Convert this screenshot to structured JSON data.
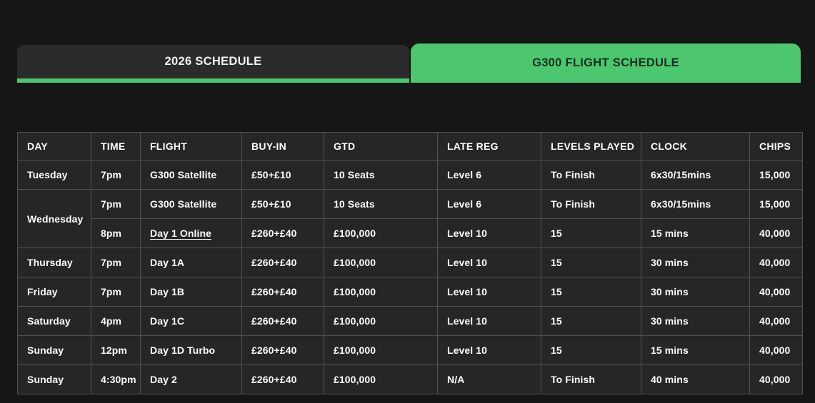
{
  "tabs": [
    {
      "label": "2026 SCHEDULE",
      "active": false
    },
    {
      "label": "G300 FLIGHT SCHEDULE",
      "active": true
    }
  ],
  "colors": {
    "accent_green": "#4cc76f",
    "page_background": "#161616",
    "cell_background": "#262626",
    "inactive_tab_background": "#2b2b2b",
    "active_tab_text": "#12301e",
    "table_text": "#ffffff",
    "table_border": "#525252"
  },
  "table": {
    "headers": [
      "DAY",
      "TIME",
      "FLIGHT",
      "BUY-IN",
      "GTD",
      "LATE REG",
      "LEVELS PLAYED",
      "CLOCK",
      "CHIPS"
    ],
    "rows": [
      {
        "day": "Tuesday",
        "day_rowspan": 1,
        "time": "7pm",
        "flight": "G300 Satellite",
        "flight_link": false,
        "buy_in": "£50+£10",
        "gtd": "10 Seats",
        "late_reg": "Level 6",
        "levels_played": "To Finish",
        "clock": "6x30/15mins",
        "chips": "15,000"
      },
      {
        "day": "Wednesday",
        "day_rowspan": 2,
        "time": "7pm",
        "flight": "G300 Satellite",
        "flight_link": false,
        "buy_in": "£50+£10",
        "gtd": "10 Seats",
        "late_reg": "Level 6",
        "levels_played": "To Finish",
        "clock": "6x30/15mins",
        "chips": "15,000"
      },
      {
        "day": "",
        "day_rowspan": 0,
        "time": "8pm",
        "flight": "Day 1 Online",
        "flight_link": true,
        "buy_in": "£260+£40",
        "gtd": "£100,000",
        "late_reg": "Level 10",
        "levels_played": "15",
        "clock": "15 mins",
        "chips": "40,000"
      },
      {
        "day": "Thursday",
        "day_rowspan": 1,
        "time": "7pm",
        "flight": "Day 1A",
        "flight_link": false,
        "buy_in": "£260+£40",
        "gtd": "£100,000",
        "late_reg": "Level 10",
        "levels_played": "15",
        "clock": "30 mins",
        "chips": "40,000"
      },
      {
        "day": "Friday",
        "day_rowspan": 1,
        "time": "7pm",
        "flight": "Day 1B",
        "flight_link": false,
        "buy_in": "£260+£40",
        "gtd": "£100,000",
        "late_reg": "Level 10",
        "levels_played": "15",
        "clock": "30 mins",
        "chips": "40,000"
      },
      {
        "day": "Saturday",
        "day_rowspan": 1,
        "time": "4pm",
        "flight": "Day 1C",
        "flight_link": false,
        "buy_in": "£260+£40",
        "gtd": "£100,000",
        "late_reg": "Level 10",
        "levels_played": "15",
        "clock": "30 mins",
        "chips": "40,000"
      },
      {
        "day": "Sunday",
        "day_rowspan": 1,
        "time": "12pm",
        "flight": "Day 1D Turbo",
        "flight_link": false,
        "buy_in": "£260+£40",
        "gtd": "£100,000",
        "late_reg": "Level 10",
        "levels_played": "15",
        "clock": "15 mins",
        "chips": "40,000"
      },
      {
        "day": "Sunday",
        "day_rowspan": 1,
        "time": "4:30pm",
        "flight": "Day 2",
        "flight_link": false,
        "buy_in": "£260+£40",
        "gtd": "£100,000",
        "late_reg": "N/A",
        "levels_played": "To Finish",
        "clock": "40 mins",
        "chips": "40,000"
      }
    ]
  }
}
